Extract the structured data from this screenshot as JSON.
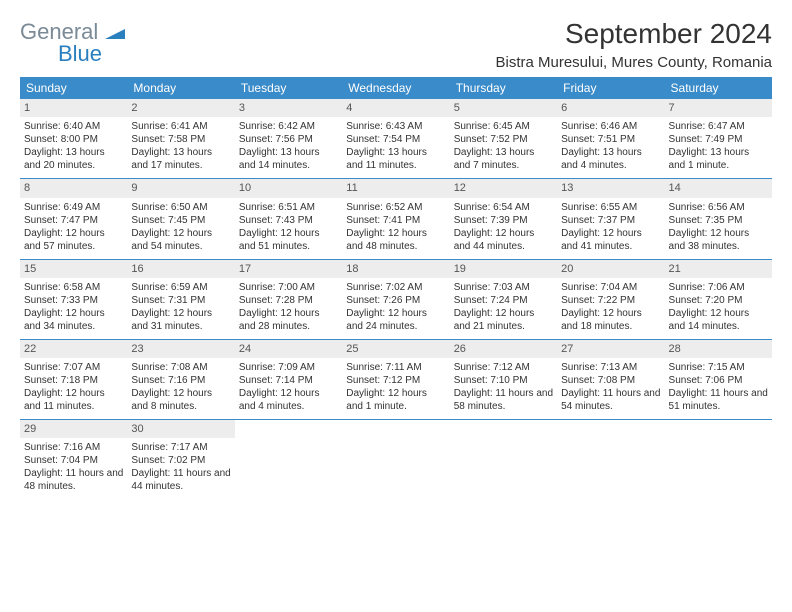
{
  "logo": {
    "line1": "General",
    "line2": "Blue"
  },
  "title": "September 2024",
  "location": "Bistra Muresului, Mures County, Romania",
  "colors": {
    "header_bg": "#3a8bc9",
    "day_bg": "#ededed",
    "divider": "#3a8bc9"
  },
  "weekdays": [
    "Sunday",
    "Monday",
    "Tuesday",
    "Wednesday",
    "Thursday",
    "Friday",
    "Saturday"
  ],
  "weeks": [
    [
      {
        "n": "1",
        "sr": "6:40 AM",
        "ss": "8:00 PM",
        "d": "13 hours and 20 minutes."
      },
      {
        "n": "2",
        "sr": "6:41 AM",
        "ss": "7:58 PM",
        "d": "13 hours and 17 minutes."
      },
      {
        "n": "3",
        "sr": "6:42 AM",
        "ss": "7:56 PM",
        "d": "13 hours and 14 minutes."
      },
      {
        "n": "4",
        "sr": "6:43 AM",
        "ss": "7:54 PM",
        "d": "13 hours and 11 minutes."
      },
      {
        "n": "5",
        "sr": "6:45 AM",
        "ss": "7:52 PM",
        "d": "13 hours and 7 minutes."
      },
      {
        "n": "6",
        "sr": "6:46 AM",
        "ss": "7:51 PM",
        "d": "13 hours and 4 minutes."
      },
      {
        "n": "7",
        "sr": "6:47 AM",
        "ss": "7:49 PM",
        "d": "13 hours and 1 minute."
      }
    ],
    [
      {
        "n": "8",
        "sr": "6:49 AM",
        "ss": "7:47 PM",
        "d": "12 hours and 57 minutes."
      },
      {
        "n": "9",
        "sr": "6:50 AM",
        "ss": "7:45 PM",
        "d": "12 hours and 54 minutes."
      },
      {
        "n": "10",
        "sr": "6:51 AM",
        "ss": "7:43 PM",
        "d": "12 hours and 51 minutes."
      },
      {
        "n": "11",
        "sr": "6:52 AM",
        "ss": "7:41 PM",
        "d": "12 hours and 48 minutes."
      },
      {
        "n": "12",
        "sr": "6:54 AM",
        "ss": "7:39 PM",
        "d": "12 hours and 44 minutes."
      },
      {
        "n": "13",
        "sr": "6:55 AM",
        "ss": "7:37 PM",
        "d": "12 hours and 41 minutes."
      },
      {
        "n": "14",
        "sr": "6:56 AM",
        "ss": "7:35 PM",
        "d": "12 hours and 38 minutes."
      }
    ],
    [
      {
        "n": "15",
        "sr": "6:58 AM",
        "ss": "7:33 PM",
        "d": "12 hours and 34 minutes."
      },
      {
        "n": "16",
        "sr": "6:59 AM",
        "ss": "7:31 PM",
        "d": "12 hours and 31 minutes."
      },
      {
        "n": "17",
        "sr": "7:00 AM",
        "ss": "7:28 PM",
        "d": "12 hours and 28 minutes."
      },
      {
        "n": "18",
        "sr": "7:02 AM",
        "ss": "7:26 PM",
        "d": "12 hours and 24 minutes."
      },
      {
        "n": "19",
        "sr": "7:03 AM",
        "ss": "7:24 PM",
        "d": "12 hours and 21 minutes."
      },
      {
        "n": "20",
        "sr": "7:04 AM",
        "ss": "7:22 PM",
        "d": "12 hours and 18 minutes."
      },
      {
        "n": "21",
        "sr": "7:06 AM",
        "ss": "7:20 PM",
        "d": "12 hours and 14 minutes."
      }
    ],
    [
      {
        "n": "22",
        "sr": "7:07 AM",
        "ss": "7:18 PM",
        "d": "12 hours and 11 minutes."
      },
      {
        "n": "23",
        "sr": "7:08 AM",
        "ss": "7:16 PM",
        "d": "12 hours and 8 minutes."
      },
      {
        "n": "24",
        "sr": "7:09 AM",
        "ss": "7:14 PM",
        "d": "12 hours and 4 minutes."
      },
      {
        "n": "25",
        "sr": "7:11 AM",
        "ss": "7:12 PM",
        "d": "12 hours and 1 minute."
      },
      {
        "n": "26",
        "sr": "7:12 AM",
        "ss": "7:10 PM",
        "d": "11 hours and 58 minutes."
      },
      {
        "n": "27",
        "sr": "7:13 AM",
        "ss": "7:08 PM",
        "d": "11 hours and 54 minutes."
      },
      {
        "n": "28",
        "sr": "7:15 AM",
        "ss": "7:06 PM",
        "d": "11 hours and 51 minutes."
      }
    ],
    [
      {
        "n": "29",
        "sr": "7:16 AM",
        "ss": "7:04 PM",
        "d": "11 hours and 48 minutes."
      },
      {
        "n": "30",
        "sr": "7:17 AM",
        "ss": "7:02 PM",
        "d": "11 hours and 44 minutes."
      },
      null,
      null,
      null,
      null,
      null
    ]
  ],
  "labels": {
    "sunrise": "Sunrise: ",
    "sunset": "Sunset: ",
    "daylight": "Daylight: "
  }
}
